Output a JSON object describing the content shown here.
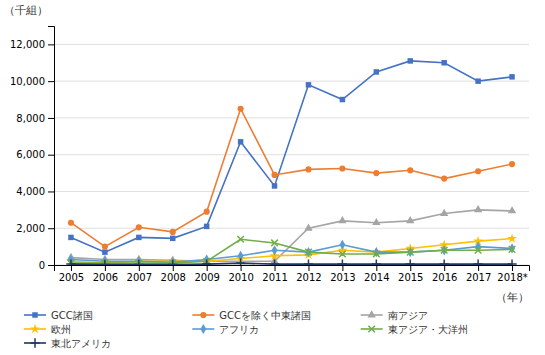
{
  "chart_data": {
    "type": "line",
    "xlabel": "（年）",
    "ylabel": "（千組）",
    "categories": [
      "2005",
      "2006",
      "2007",
      "2008",
      "2009",
      "2010",
      "2011",
      "2012",
      "2013",
      "2014",
      "2015",
      "2016",
      "2017",
      "2018*"
    ],
    "series": [
      {
        "name": "GCC諸国",
        "color": "#4472C4",
        "marker": "square",
        "values": [
          1500,
          700,
          1500,
          1450,
          2100,
          6700,
          4300,
          9800,
          9000,
          10500,
          11100,
          11000,
          10000,
          10234
        ]
      },
      {
        "name": "GCCを除く中東諸国",
        "color": "#ED7D31",
        "marker": "circle",
        "values": [
          2300,
          1000,
          2050,
          1800,
          2900,
          8500,
          4900,
          5200,
          5250,
          5000,
          5150,
          4700,
          5100,
          5490
        ]
      },
      {
        "name": "南アジア",
        "color": "#A5A5A5",
        "marker": "triangle",
        "values": [
          400,
          300,
          300,
          250,
          200,
          200,
          200,
          2000,
          2400,
          2300,
          2400,
          2800,
          3000,
          2939
        ]
      },
      {
        "name": "欧州",
        "color": "#FFC000",
        "marker": "star",
        "values": [
          200,
          100,
          200,
          200,
          200,
          350,
          500,
          550,
          800,
          700,
          900,
          1100,
          1300,
          1438
        ]
      },
      {
        "name": "アフリカ",
        "color": "#5B9BD5",
        "marker": "diamond",
        "values": [
          300,
          200,
          200,
          150,
          300,
          500,
          800,
          700,
          1100,
          700,
          700,
          800,
          1000,
          900
        ]
      },
      {
        "name": "東アジア・大洋州",
        "color": "#70AD47",
        "marker": "x",
        "values": [
          100,
          100,
          100,
          100,
          200,
          1400,
          1200,
          700,
          600,
          600,
          700,
          800,
          800,
          850
        ]
      },
      {
        "name": "東北アメリカ",
        "color": "#1F3864",
        "marker": "plus",
        "values": [
          50,
          30,
          30,
          30,
          50,
          100,
          50,
          50,
          50,
          50,
          50,
          50,
          50,
          50
        ]
      }
    ],
    "ylim": [
      0,
      13000
    ],
    "yticks": [
      0,
      {
        "value": 2000,
        "label": "2,000"
      },
      {
        "value": 4000,
        "label": "4,000"
      },
      {
        "value": 6000,
        "label": "6,000"
      },
      {
        "value": 8000,
        "label": "8,000"
      },
      {
        "value": 10000,
        "label": "10,000"
      },
      {
        "value": 12000,
        "label": "12,000"
      }
    ],
    "grid": true,
    "legend": "bottom"
  }
}
